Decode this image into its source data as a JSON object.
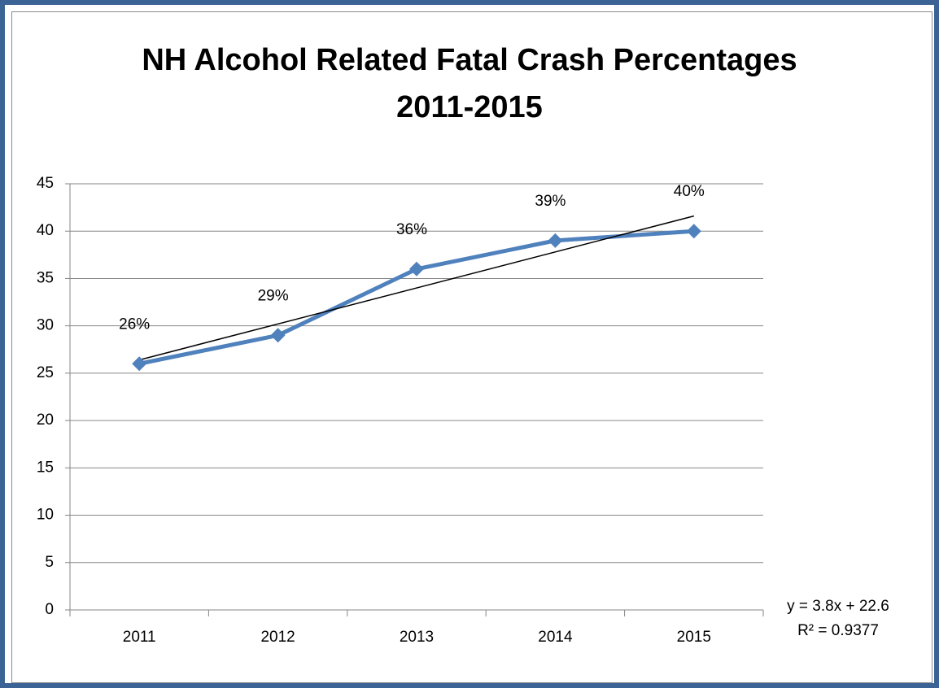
{
  "chart_data": {
    "type": "line",
    "title": [
      "NH Alcohol Related Fatal Crash Percentages",
      "2011-2015"
    ],
    "categories": [
      "2011",
      "2012",
      "2013",
      "2014",
      "2015"
    ],
    "series": [
      {
        "name": "Percentage",
        "color": "#4f81bd",
        "values": [
          26,
          29,
          36,
          39,
          40
        ],
        "value_labels": [
          "26%",
          "29%",
          "36%",
          "39%",
          "40%"
        ]
      }
    ],
    "trendline": {
      "slope": 3.8,
      "intercept": 22.6,
      "color": "#000000",
      "equation": "y = 3.8x + 22.6",
      "r_squared": "R² = 0.9377"
    },
    "ylim": [
      0,
      45
    ],
    "yticks": [
      0,
      5,
      10,
      15,
      20,
      25,
      30,
      35,
      40,
      45
    ],
    "grid": true
  }
}
